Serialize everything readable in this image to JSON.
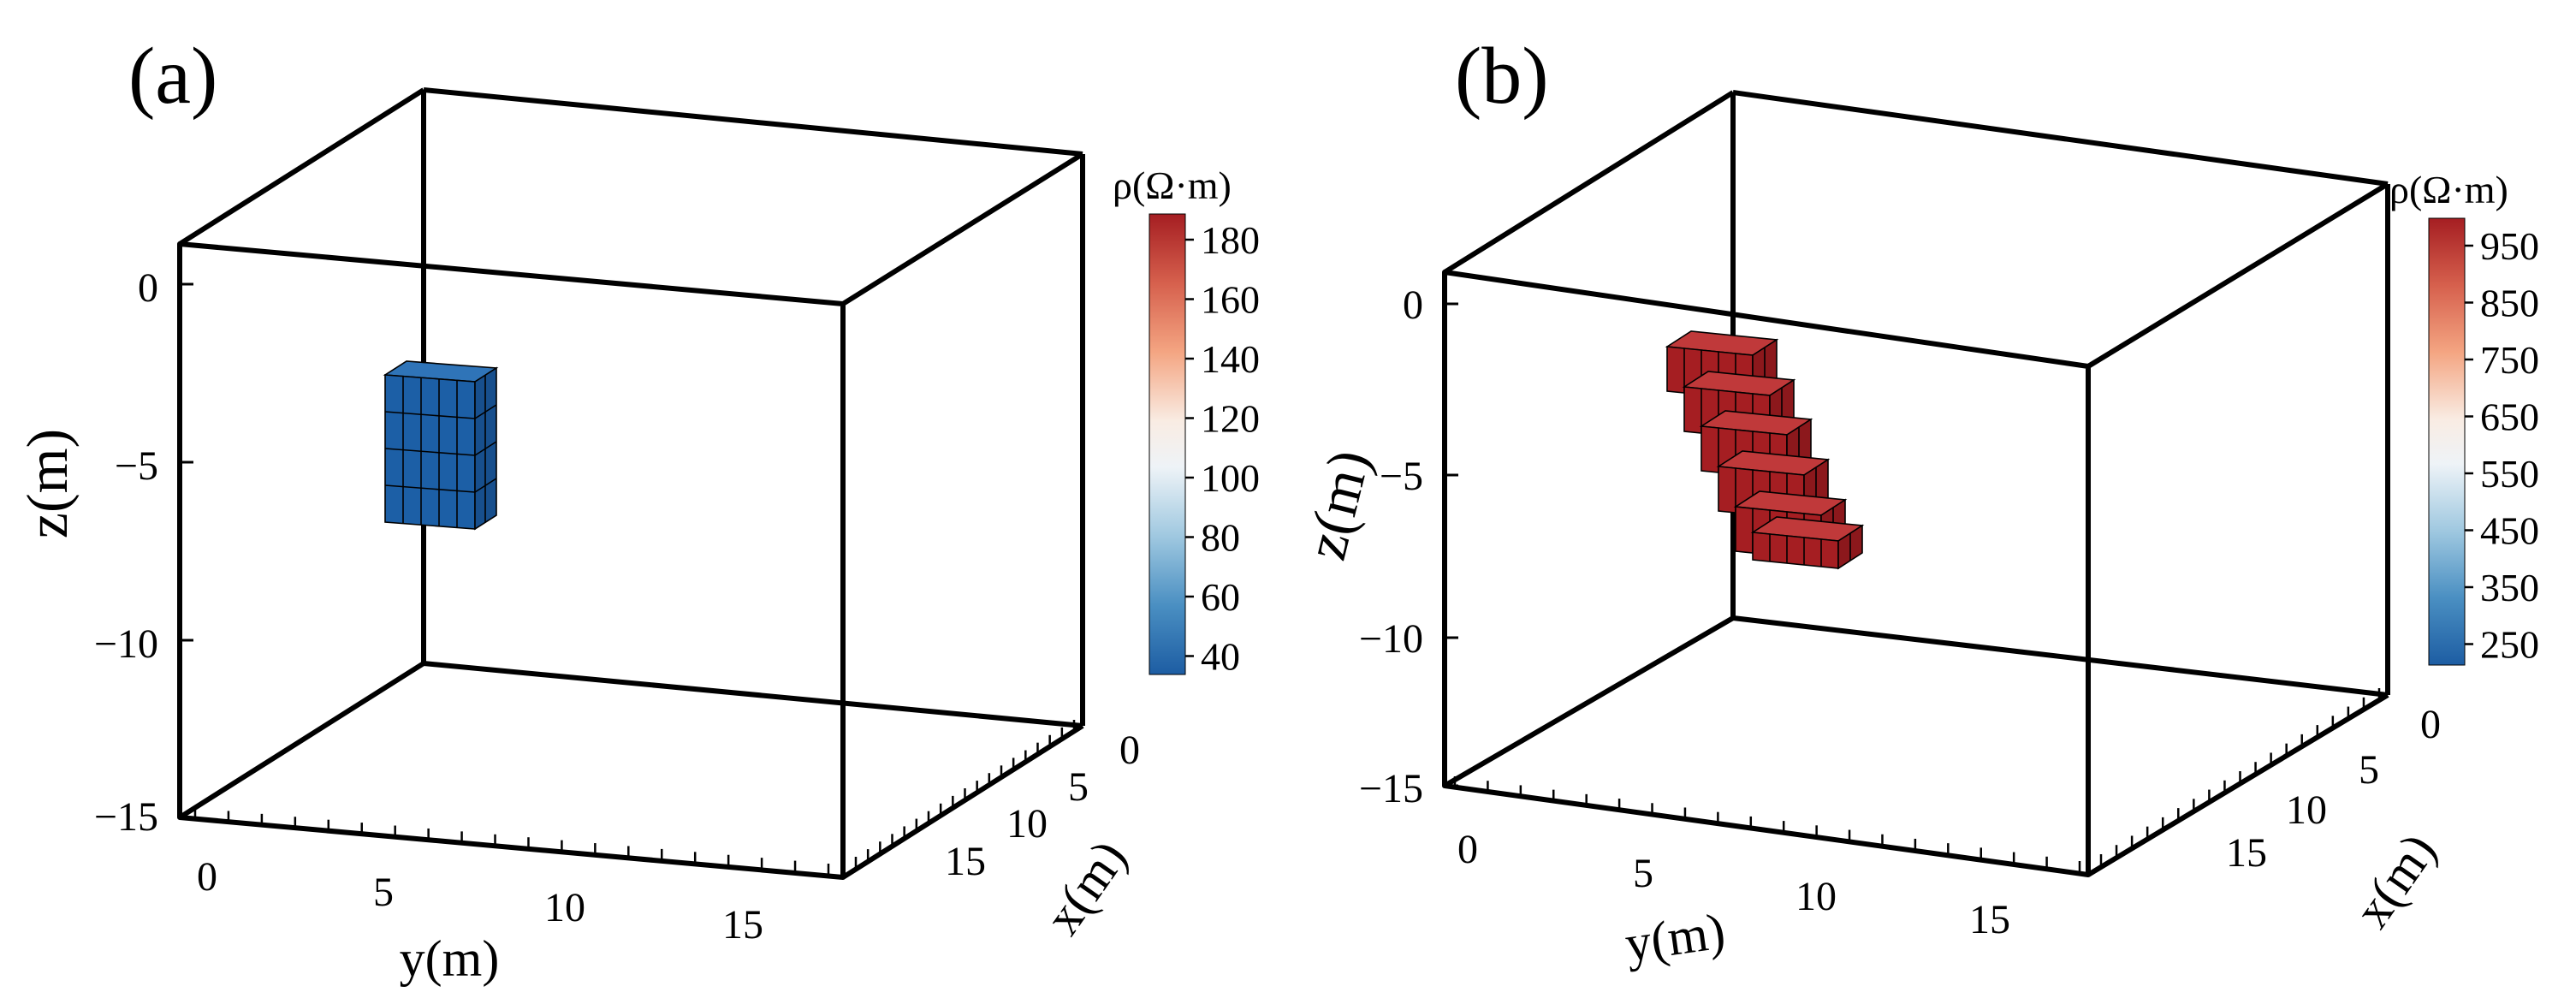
{
  "panels": [
    {
      "label": "(a)",
      "zlabel": "z(m)",
      "ylabel": "y(m)",
      "xlabel": "x(m)",
      "z_ticks": [
        "0",
        "−5",
        "−10",
        "−15"
      ],
      "y_ticks": [
        "0",
        "5",
        "10",
        "15"
      ],
      "x_ticks": [
        "0",
        "5",
        "10",
        "15"
      ],
      "colorbar_title": "ρ(Ω·m)",
      "colorbar_ticks": [
        "180",
        "160",
        "140",
        "120",
        "100",
        "80",
        "60",
        "40"
      ]
    },
    {
      "label": "(b)",
      "zlabel": "z(m)",
      "ylabel": "y(m)",
      "xlabel": "x(m)",
      "z_ticks": [
        "0",
        "−5",
        "−10",
        "−15"
      ],
      "y_ticks": [
        "0",
        "5",
        "10",
        "15"
      ],
      "x_ticks": [
        "0",
        "5",
        "10",
        "15"
      ],
      "colorbar_title": "ρ(Ω·m)",
      "colorbar_ticks": [
        "950",
        "850",
        "750",
        "650",
        "550",
        "450",
        "350",
        "250"
      ]
    }
  ],
  "chart_data": [
    {
      "type": "3d-voxel",
      "panel": "(a)",
      "axes": {
        "x": {
          "label": "x(m)",
          "range": [
            0,
            18
          ],
          "ticks": [
            0,
            5,
            10,
            15
          ]
        },
        "y": {
          "label": "y(m)",
          "range": [
            -1,
            19
          ],
          "ticks": [
            0,
            5,
            10,
            15
          ]
        },
        "z": {
          "label": "z(m)",
          "range": [
            -15,
            1
          ],
          "ticks": [
            0,
            -5,
            -10,
            -15
          ]
        }
      },
      "colorbar": {
        "label": "ρ(Ω·m)",
        "range": [
          30,
          190
        ],
        "ticks": [
          40,
          60,
          80,
          100,
          120,
          140,
          160,
          180
        ],
        "colormap": "RdBu_r"
      },
      "anomaly": {
        "description": "single rectangular block",
        "resistivity": 30,
        "color": "#1c5fa6",
        "y_range": [
          5,
          8
        ],
        "z_range": [
          -6.75,
          -3
        ],
        "x_range": [
          7,
          10
        ],
        "cell_size": 0.75
      }
    },
    {
      "type": "3d-voxel",
      "panel": "(b)",
      "axes": {
        "x": {
          "label": "x(m)",
          "range": [
            0,
            18
          ],
          "ticks": [
            0,
            5,
            10,
            15
          ]
        },
        "y": {
          "label": "y(m)",
          "range": [
            -1,
            19
          ],
          "ticks": [
            0,
            5,
            10,
            15
          ]
        },
        "z": {
          "label": "z(m)",
          "range": [
            -15,
            1
          ],
          "ticks": [
            0,
            -5,
            -10,
            -15
          ]
        }
      },
      "colorbar": {
        "label": "ρ(Ω·m)",
        "range": [
          200,
          1000
        ],
        "ticks": [
          250,
          350,
          450,
          550,
          650,
          750,
          850,
          950
        ],
        "colormap": "RdBu_r"
      },
      "anomaly": {
        "description": "inclined dipping block (stair-stepped)",
        "resistivity": 1000,
        "color": "#a51e22",
        "layers": [
          {
            "y_range": [
              3.0,
              6.0
            ],
            "z_range": [
              -2.5,
              -1.5
            ]
          },
          {
            "y_range": [
              3.5,
              6.5
            ],
            "z_range": [
              -3.5,
              -2.5
            ]
          },
          {
            "y_range": [
              4.0,
              7.0
            ],
            "z_range": [
              -4.5,
              -3.5
            ]
          },
          {
            "y_range": [
              4.5,
              7.5
            ],
            "z_range": [
              -5.5,
              -4.5
            ]
          },
          {
            "y_range": [
              5.0,
              8.0
            ],
            "z_range": [
              -6.5,
              -5.5
            ]
          },
          {
            "y_range": [
              5.5,
              8.5
            ],
            "z_range": [
              -7.0,
              -6.5
            ]
          }
        ],
        "x_range": [
          7,
          10
        ]
      }
    }
  ]
}
